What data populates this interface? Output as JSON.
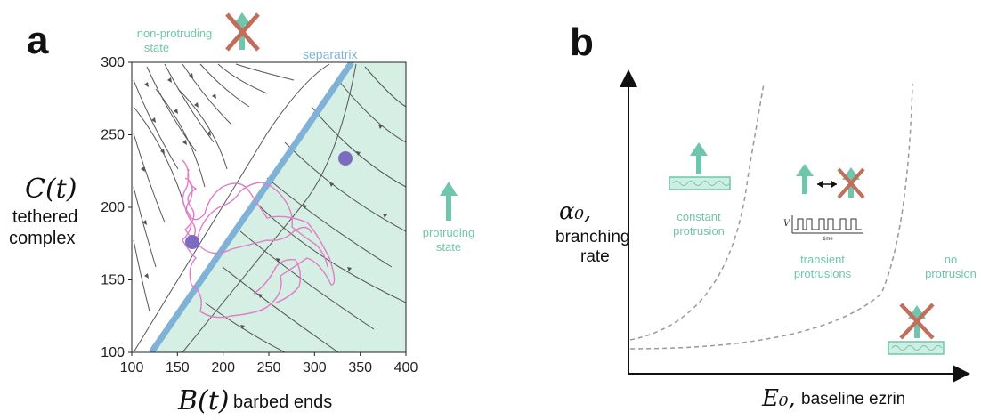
{
  "panel_a": {
    "label": "a",
    "y_symbol": "C(t)",
    "y_caption_1": "tethered",
    "y_caption_2": "complex",
    "x_symbol": "B(t)",
    "x_caption": "barbed ends",
    "x_ticks": [
      "100",
      "150",
      "200",
      "250",
      "300",
      "350",
      "400"
    ],
    "y_ticks": [
      "100",
      "150",
      "200",
      "250",
      "300"
    ],
    "separatrix_label": "separatrix",
    "non_protruding_line1": "non-protruding",
    "non_protruding_line2": "state",
    "protruding_line1": "protruding",
    "protruding_line2": "state",
    "colors": {
      "region": "#d5efe4",
      "separatrix": "#7fb2d6",
      "trajectory": "#e27cc8",
      "point": "#7b6cc0",
      "accent": "#6fc6ad",
      "cross": "#c0705a"
    }
  },
  "panel_b": {
    "label": "b",
    "y_symbol": "α₀,",
    "y_caption_1": "branching",
    "y_caption_2": "rate",
    "x_symbol": "E₀,",
    "x_caption": "baseline ezrin",
    "constant_line1": "constant",
    "constant_line2": "protrusion",
    "transient_line1": "transient",
    "transient_line2": "protrusions",
    "no_line1": "no",
    "no_line2": "protrusion",
    "inset_v": "V",
    "inset_time": "time"
  }
}
